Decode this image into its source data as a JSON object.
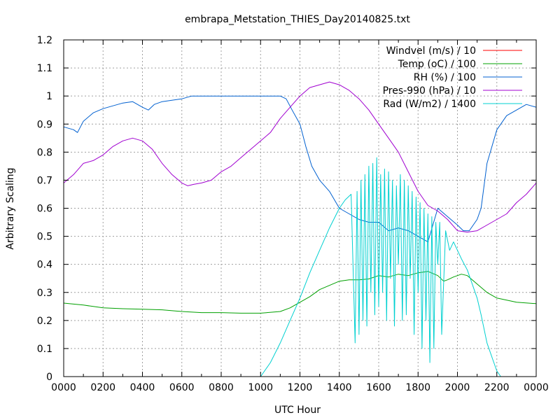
{
  "chart_data": {
    "type": "line",
    "title": "embrapa_Metstation_THIES_Day20140825.txt",
    "xlabel": "UTC Hour",
    "ylabel": "Arbitrary Scaling",
    "xlim": [
      0,
      24
    ],
    "ylim": [
      0,
      1.2
    ],
    "grid": true,
    "legend_position": "top-right",
    "x_ticks": [
      {
        "value": 0,
        "label": "0000"
      },
      {
        "value": 2,
        "label": "0200"
      },
      {
        "value": 4,
        "label": "0400"
      },
      {
        "value": 6,
        "label": "0600"
      },
      {
        "value": 8,
        "label": "0800"
      },
      {
        "value": 10,
        "label": "1000"
      },
      {
        "value": 12,
        "label": "1200"
      },
      {
        "value": 14,
        "label": "1400"
      },
      {
        "value": 16,
        "label": "1600"
      },
      {
        "value": 18,
        "label": "1800"
      },
      {
        "value": 20,
        "label": "2000"
      },
      {
        "value": 22,
        "label": "2200"
      },
      {
        "value": 24,
        "label": "0000"
      }
    ],
    "y_ticks": [
      {
        "value": 0,
        "label": "0"
      },
      {
        "value": 0.1,
        "label": "0.1"
      },
      {
        "value": 0.2,
        "label": "0.2"
      },
      {
        "value": 0.3,
        "label": "0.3"
      },
      {
        "value": 0.4,
        "label": "0.4"
      },
      {
        "value": 0.5,
        "label": "0.5"
      },
      {
        "value": 0.6,
        "label": "0.6"
      },
      {
        "value": 0.7,
        "label": "0.7"
      },
      {
        "value": 0.8,
        "label": "0.8"
      },
      {
        "value": 0.9,
        "label": "0.9"
      },
      {
        "value": 1.0,
        "label": "1"
      },
      {
        "value": 1.1,
        "label": "1.1"
      },
      {
        "value": 1.2,
        "label": "1.2"
      }
    ],
    "series": [
      {
        "name": "Windvel (m/s) / 10",
        "color": "#ff0000",
        "x": [
          0,
          24
        ],
        "y": [
          null,
          null
        ]
      },
      {
        "name": "Temp (oC) / 100",
        "color": "#00a000",
        "x": [
          0,
          1,
          2,
          3,
          4,
          5,
          6,
          7,
          8,
          9,
          10,
          11,
          11.5,
          12,
          12.5,
          13,
          13.5,
          14,
          14.5,
          15,
          15.5,
          16,
          16.5,
          17,
          17.5,
          18,
          18.5,
          19,
          19.3,
          19.5,
          19.8,
          20.2,
          20.5,
          21,
          21.5,
          22,
          23,
          24
        ],
        "y": [
          0.262,
          0.255,
          0.245,
          0.242,
          0.24,
          0.238,
          0.232,
          0.228,
          0.228,
          0.226,
          0.226,
          0.232,
          0.245,
          0.265,
          0.285,
          0.31,
          0.325,
          0.34,
          0.345,
          0.345,
          0.348,
          0.36,
          0.355,
          0.365,
          0.36,
          0.37,
          0.375,
          0.36,
          0.34,
          0.345,
          0.355,
          0.365,
          0.36,
          0.33,
          0.3,
          0.28,
          0.265,
          0.26
        ]
      },
      {
        "name": "RH (%) / 100",
        "color": "#0060d0",
        "x": [
          0,
          0.5,
          0.7,
          1,
          1.5,
          2,
          2.5,
          3,
          3.5,
          4,
          4.3,
          4.6,
          5,
          6,
          6.5,
          7,
          8,
          9,
          10,
          11,
          11.3,
          11.6,
          12,
          12.3,
          12.6,
          13,
          13.5,
          14,
          14.5,
          15,
          15.5,
          16,
          16.5,
          17,
          17.5,
          18,
          18.5,
          19,
          19.5,
          20,
          20.3,
          20.6,
          21,
          21.2,
          21.5,
          22,
          22.5,
          23,
          23.5,
          24
        ],
        "y": [
          0.89,
          0.88,
          0.87,
          0.91,
          0.94,
          0.955,
          0.965,
          0.975,
          0.98,
          0.96,
          0.95,
          0.97,
          0.98,
          0.99,
          1.0,
          1.0,
          1.0,
          1.0,
          1.0,
          1.0,
          0.99,
          0.95,
          0.9,
          0.82,
          0.75,
          0.7,
          0.66,
          0.6,
          0.58,
          0.56,
          0.55,
          0.55,
          0.52,
          0.53,
          0.52,
          0.5,
          0.48,
          0.6,
          0.57,
          0.54,
          0.52,
          0.52,
          0.56,
          0.6,
          0.76,
          0.88,
          0.93,
          0.95,
          0.97,
          0.96
        ]
      },
      {
        "name": "Pres-990 (hPa) / 10",
        "color": "#a000d0",
        "x": [
          0,
          0.5,
          1,
          1.5,
          2,
          2.5,
          3,
          3.5,
          4,
          4.5,
          5,
          5.5,
          6,
          6.3,
          6.6,
          7,
          7.5,
          8,
          8.5,
          9,
          9.5,
          10,
          10.5,
          11,
          11.5,
          12,
          12.5,
          13,
          13.5,
          14,
          14.5,
          15,
          15.5,
          16,
          16.5,
          17,
          17.5,
          18,
          18.5,
          19,
          19.5,
          20,
          20.5,
          21,
          21.5,
          22,
          22.5,
          23,
          23.5,
          24
        ],
        "y": [
          0.69,
          0.72,
          0.76,
          0.77,
          0.79,
          0.82,
          0.84,
          0.85,
          0.84,
          0.81,
          0.76,
          0.72,
          0.69,
          0.68,
          0.685,
          0.69,
          0.7,
          0.73,
          0.75,
          0.78,
          0.81,
          0.84,
          0.87,
          0.92,
          0.96,
          1.0,
          1.03,
          1.04,
          1.05,
          1.04,
          1.02,
          0.99,
          0.95,
          0.9,
          0.85,
          0.8,
          0.73,
          0.66,
          0.61,
          0.59,
          0.56,
          0.52,
          0.515,
          0.52,
          0.54,
          0.56,
          0.58,
          0.62,
          0.65,
          0.69
        ]
      },
      {
        "name": "Rad (W/m2) / 1400",
        "color": "#00d0d0",
        "x": [
          10,
          10.5,
          11,
          11.5,
          12,
          12.5,
          13,
          13.5,
          14,
          14.3,
          14.6,
          14.8,
          14.9,
          15.0,
          15.1,
          15.2,
          15.3,
          15.4,
          15.5,
          15.6,
          15.7,
          15.8,
          15.9,
          16.0,
          16.1,
          16.2,
          16.3,
          16.4,
          16.5,
          16.6,
          16.7,
          16.8,
          16.9,
          17.0,
          17.1,
          17.2,
          17.3,
          17.4,
          17.5,
          17.6,
          17.7,
          17.8,
          17.9,
          18.0,
          18.1,
          18.2,
          18.3,
          18.4,
          18.5,
          18.6,
          18.7,
          18.8,
          18.9,
          19.0,
          19.1,
          19.2,
          19.4,
          19.6,
          19.8,
          20.0,
          20.2,
          20.5,
          20.8,
          21.0,
          21.2,
          21.5,
          21.8,
          22.0,
          22.2
        ],
        "y": [
          0.0,
          0.05,
          0.12,
          0.2,
          0.28,
          0.37,
          0.45,
          0.53,
          0.6,
          0.63,
          0.65,
          0.12,
          0.66,
          0.15,
          0.7,
          0.2,
          0.72,
          0.18,
          0.75,
          0.3,
          0.76,
          0.22,
          0.78,
          0.25,
          0.72,
          0.3,
          0.74,
          0.2,
          0.73,
          0.35,
          0.7,
          0.18,
          0.68,
          0.4,
          0.72,
          0.2,
          0.7,
          0.22,
          0.68,
          0.35,
          0.66,
          0.15,
          0.64,
          0.3,
          0.62,
          0.1,
          0.6,
          0.2,
          0.58,
          0.05,
          0.57,
          0.1,
          0.55,
          0.4,
          0.55,
          0.15,
          0.52,
          0.45,
          0.48,
          0.45,
          0.42,
          0.38,
          0.32,
          0.28,
          0.22,
          0.12,
          0.06,
          0.02,
          0.0
        ]
      }
    ]
  }
}
